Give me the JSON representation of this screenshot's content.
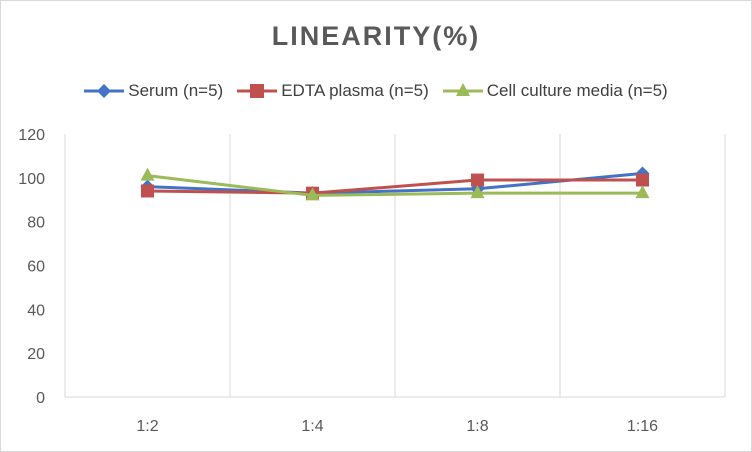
{
  "chart_data": {
    "type": "line",
    "title": "LINEARITY(%)",
    "categories": [
      "1:2",
      "1:4",
      "1:8",
      "1:16"
    ],
    "ylim": [
      0,
      120
    ],
    "yticks": [
      0,
      20,
      40,
      60,
      80,
      100,
      120
    ],
    "grid": "vertical",
    "legend_position": "top",
    "series": [
      {
        "name": "Serum (n=5)",
        "color": "#4472c4",
        "marker": "diamond",
        "values": [
          96,
          93,
          95,
          102
        ]
      },
      {
        "name": "EDTA plasma (n=5)",
        "color": "#c0504d",
        "marker": "square",
        "values": [
          94,
          93,
          99,
          99
        ]
      },
      {
        "name": "Cell culture media (n=5)",
        "color": "#9bbb59",
        "marker": "triangle",
        "values": [
          101,
          92,
          93,
          93
        ]
      }
    ]
  }
}
